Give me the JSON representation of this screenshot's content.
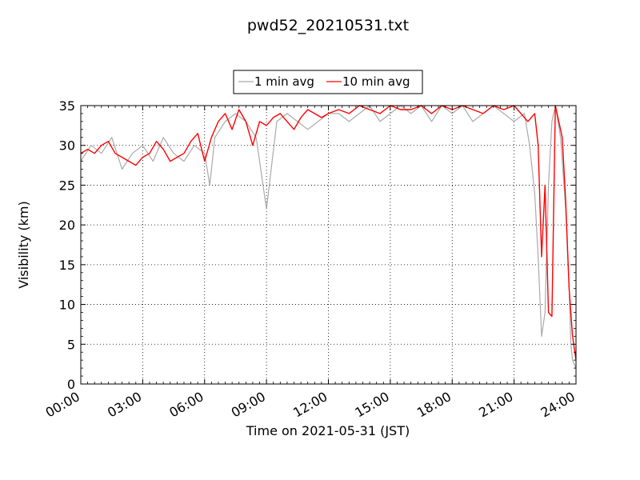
{
  "chart_data": {
    "type": "line",
    "title": "pwd52_20210531.txt",
    "xlabel": "Time on 2021-05-31 (JST)",
    "ylabel": "Visibility (km)",
    "xlim": [
      "00:00",
      "24:00"
    ],
    "ylim": [
      0,
      35
    ],
    "x_ticks": [
      "00:00",
      "03:00",
      "06:00",
      "09:00",
      "12:00",
      "15:00",
      "18:00",
      "21:00",
      "24:00"
    ],
    "y_ticks": [
      "0",
      "5",
      "10",
      "15",
      "20",
      "25",
      "30",
      "35"
    ],
    "grid": true,
    "grid_style": "dotted",
    "legend_position": "top-center",
    "series": [
      {
        "name": "1 min avg",
        "color": "#aaaaaa",
        "sampling": "1 min",
        "x": [
          "00:00",
          "00:30",
          "01:00",
          "01:30",
          "02:00",
          "02:30",
          "03:00",
          "03:30",
          "04:00",
          "04:30",
          "05:00",
          "05:30",
          "06:00",
          "06:15",
          "06:30",
          "07:00",
          "07:30",
          "08:00",
          "08:30",
          "08:50",
          "09:00",
          "09:30",
          "10:00",
          "10:30",
          "11:00",
          "11:30",
          "12:00",
          "12:30",
          "13:00",
          "13:30",
          "14:00",
          "14:30",
          "15:00",
          "15:30",
          "16:00",
          "16:30",
          "17:00",
          "17:30",
          "18:00",
          "18:30",
          "19:00",
          "19:30",
          "20:00",
          "20:30",
          "21:00",
          "21:30",
          "21:45",
          "22:00",
          "22:10",
          "22:20",
          "22:30",
          "22:40",
          "22:50",
          "23:00",
          "23:15",
          "23:30",
          "23:40",
          "23:45",
          "23:50",
          "24:00"
        ],
        "values": [
          28,
          30,
          29,
          31,
          27,
          29,
          30,
          28,
          31,
          29,
          28,
          30,
          29,
          25,
          31,
          33,
          34,
          33,
          31,
          25,
          22,
          33,
          34,
          33,
          32,
          33,
          34,
          34,
          33,
          34,
          35,
          33,
          34,
          35,
          34,
          35,
          33,
          35,
          34,
          35,
          33,
          34,
          35,
          34,
          33,
          34,
          30,
          24,
          16,
          6,
          9,
          25,
          33,
          35,
          31,
          22,
          12,
          5,
          3,
          2
        ]
      },
      {
        "name": "10 min avg",
        "color": "#ff0000",
        "sampling": "10 min",
        "x": [
          "00:00",
          "00:20",
          "00:40",
          "01:00",
          "01:20",
          "01:40",
          "02:00",
          "02:20",
          "02:40",
          "03:00",
          "03:20",
          "03:40",
          "04:00",
          "04:20",
          "04:40",
          "05:00",
          "05:20",
          "05:40",
          "06:00",
          "06:20",
          "06:40",
          "07:00",
          "07:20",
          "07:40",
          "08:00",
          "08:20",
          "08:40",
          "09:00",
          "09:20",
          "09:40",
          "10:00",
          "10:20",
          "10:40",
          "11:00",
          "11:20",
          "11:40",
          "12:00",
          "12:30",
          "13:00",
          "13:30",
          "14:00",
          "14:30",
          "15:00",
          "15:30",
          "16:00",
          "16:30",
          "17:00",
          "17:30",
          "18:00",
          "18:30",
          "19:00",
          "19:30",
          "20:00",
          "20:30",
          "21:00",
          "21:20",
          "21:40",
          "21:50",
          "22:00",
          "22:10",
          "22:20",
          "22:30",
          "22:40",
          "22:50",
          "23:00",
          "23:10",
          "23:20",
          "23:30",
          "23:40",
          "23:50",
          "24:00"
        ],
        "values": [
          29,
          29.5,
          29,
          30,
          30.5,
          29,
          28.5,
          28,
          27.5,
          28.5,
          29,
          30.5,
          29.5,
          28,
          28.5,
          29,
          30.5,
          31.5,
          28,
          31,
          33,
          34,
          32,
          34.5,
          33,
          30,
          33,
          32.5,
          33.5,
          34,
          33,
          32,
          33.5,
          34.5,
          34,
          33.5,
          34,
          34.5,
          34,
          35,
          34.5,
          34,
          35,
          34.5,
          34.5,
          35,
          34,
          35,
          34.5,
          35,
          34.5,
          34,
          35,
          34.5,
          35,
          34,
          33,
          33.5,
          34,
          30,
          16,
          25,
          9,
          8.5,
          35,
          33,
          31,
          23,
          12,
          6,
          3
        ]
      }
    ]
  }
}
